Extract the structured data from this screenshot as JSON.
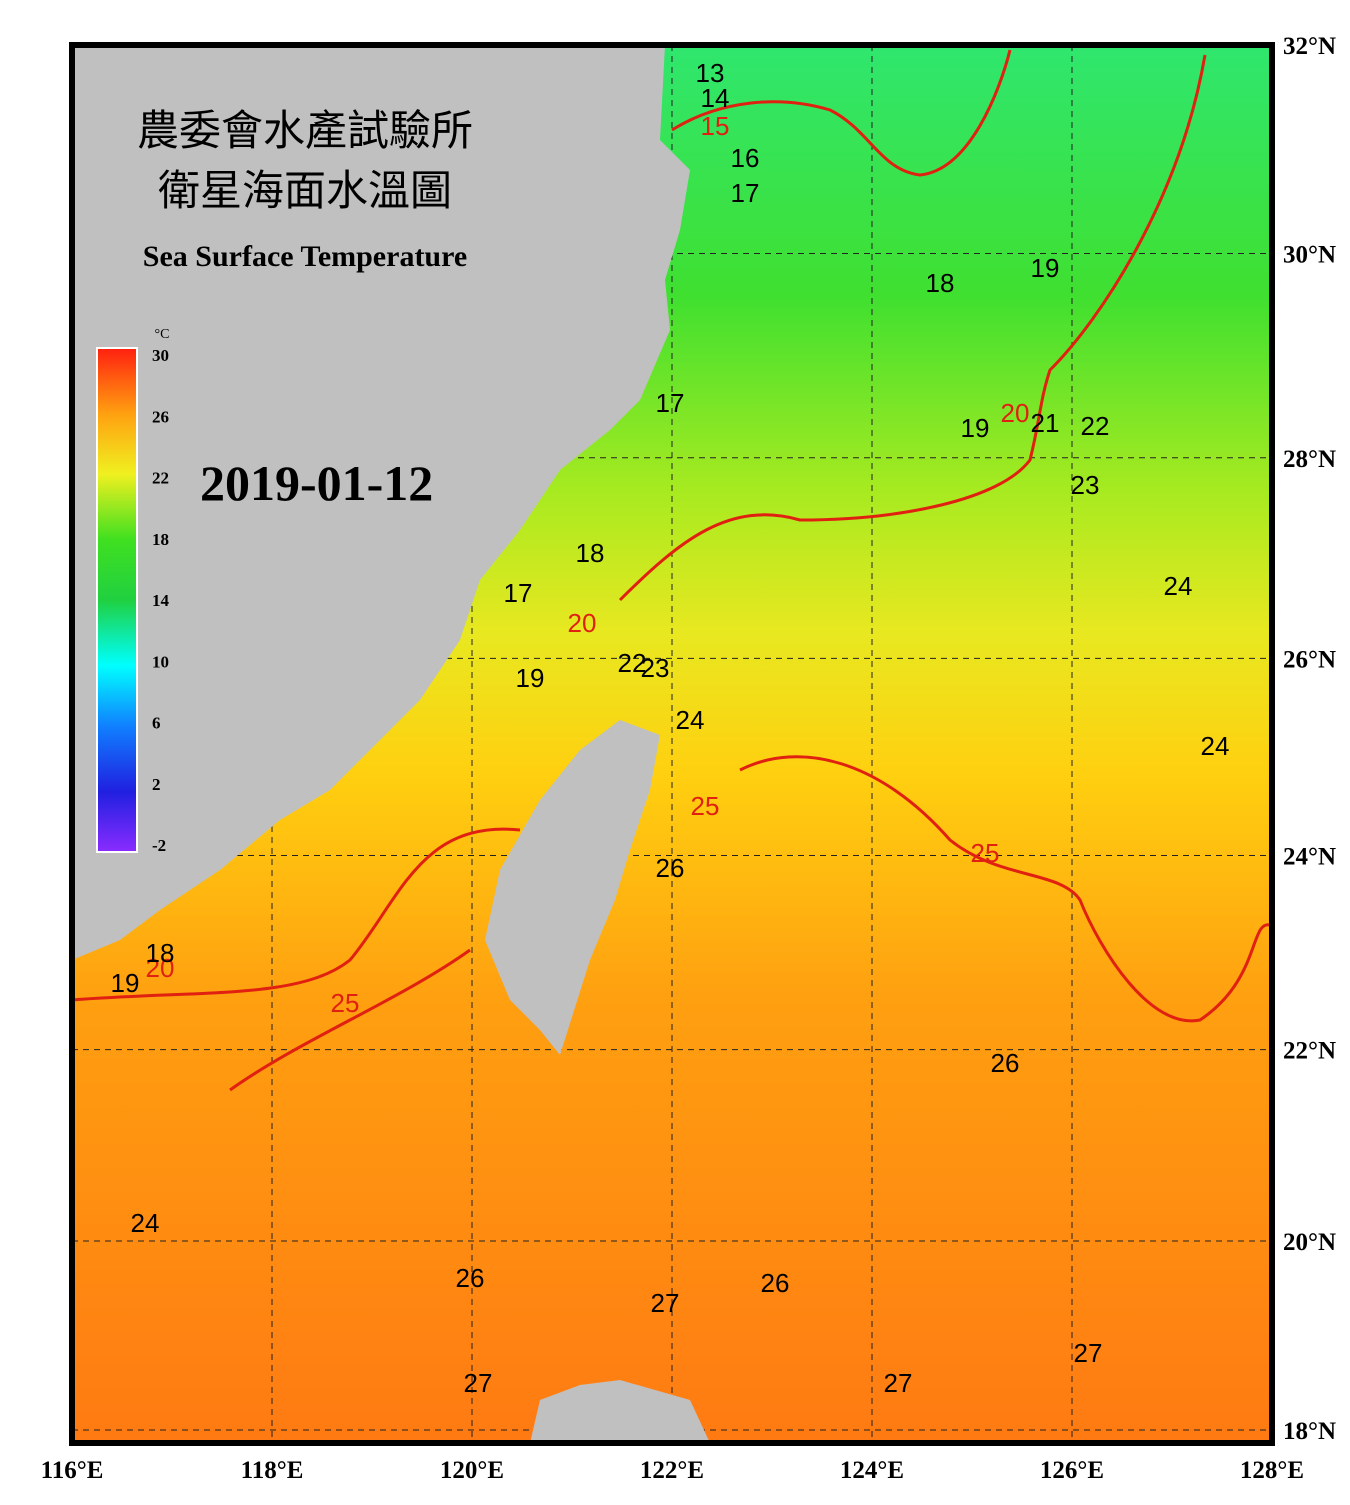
{
  "title_zh": "農委會水產試驗所",
  "subtitle_zh": "衛星海面水溫圖",
  "title_en": "Sea Surface Temperature",
  "date": "2019-01-12",
  "colorbar": {
    "unit": "°C",
    "ticks": [
      -2,
      2,
      6,
      10,
      14,
      18,
      22,
      26,
      30
    ]
  },
  "map": {
    "xticks": [
      {
        "value": 116,
        "label": "116°E"
      },
      {
        "value": 118,
        "label": "118°E"
      },
      {
        "value": 120,
        "label": "120°E"
      },
      {
        "value": 122,
        "label": "122°E"
      },
      {
        "value": 124,
        "label": "124°E"
      },
      {
        "value": 126,
        "label": "126°E"
      },
      {
        "value": 128,
        "label": "128°E"
      }
    ],
    "yticks": [
      {
        "value": 32,
        "label": "32°N"
      },
      {
        "value": 30,
        "label": "30°N"
      },
      {
        "value": 28,
        "label": "28°N"
      },
      {
        "value": 26,
        "label": "26°N"
      },
      {
        "value": 24,
        "label": "24°N"
      },
      {
        "value": 22,
        "label": "22°N"
      },
      {
        "value": 20,
        "label": "20°N"
      },
      {
        "value": 18,
        "label": "18°N"
      }
    ],
    "contour_labels": [
      13,
      14,
      15,
      16,
      17,
      18,
      19,
      17,
      19,
      20,
      21,
      22,
      23,
      18,
      17,
      20,
      24,
      19,
      22,
      23,
      24,
      25,
      24,
      25,
      26,
      20,
      18,
      19,
      25,
      26,
      24,
      26,
      26,
      27,
      27,
      27,
      27
    ]
  }
}
